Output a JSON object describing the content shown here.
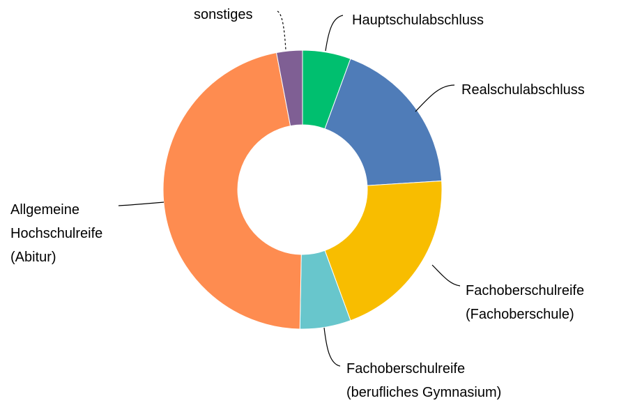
{
  "chart_data": {
    "type": "donut",
    "categories": [
      "Hauptschulabschluss",
      "Realschulabschluss",
      "Fachoberschulreife\n(Fachoberschule)",
      "Fachoberschulreife\n(berufliches Gymnasium)",
      "Allgemeine\nHochschulreife\n(Abitur)",
      "sonstiges"
    ],
    "values": [
      5.6,
      18.4,
      20.4,
      5.9,
      46.7,
      3.0
    ],
    "colors": [
      "#00bf6f",
      "#4f7cb8",
      "#f8bd00",
      "#68c6cc",
      "#fe8c50",
      "#7f5f94"
    ]
  }
}
